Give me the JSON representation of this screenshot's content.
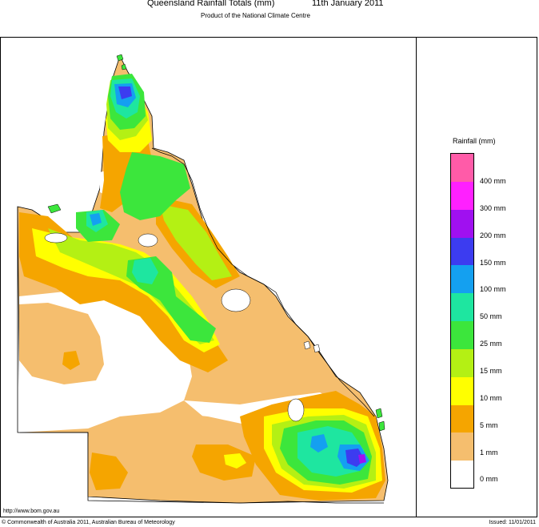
{
  "header": {
    "title": "Queensland Rainfall Totals (mm)",
    "date": "11th January 2011",
    "subtitle": "Product of the National Climate Centre"
  },
  "legend": {
    "title": "Rainfall (mm)",
    "items": [
      {
        "label": "400 mm",
        "color": "#ff5ba8"
      },
      {
        "label": "300 mm",
        "color": "#ff20ff"
      },
      {
        "label": "200 mm",
        "color": "#a010f0"
      },
      {
        "label": "150 mm",
        "color": "#3c3cf0"
      },
      {
        "label": "100 mm",
        "color": "#14a0f0"
      },
      {
        "label": "50 mm",
        "color": "#1ee6a0"
      },
      {
        "label": "25 mm",
        "color": "#3ce63c"
      },
      {
        "label": "15 mm",
        "color": "#b4f014"
      },
      {
        "label": "10 mm",
        "color": "#ffff00"
      },
      {
        "label": "5 mm",
        "color": "#f5a500"
      },
      {
        "label": "1 mm",
        "color": "#f5be6e"
      },
      {
        "label": "0 mm",
        "color": "#ffffff"
      }
    ]
  },
  "footer": {
    "url": "http://www.bom.gov.au",
    "copyright": "© Commonwealth of Australia 2011, Australian Bureau of Meteorology",
    "issued": "Issued: 11/01/2011"
  }
}
